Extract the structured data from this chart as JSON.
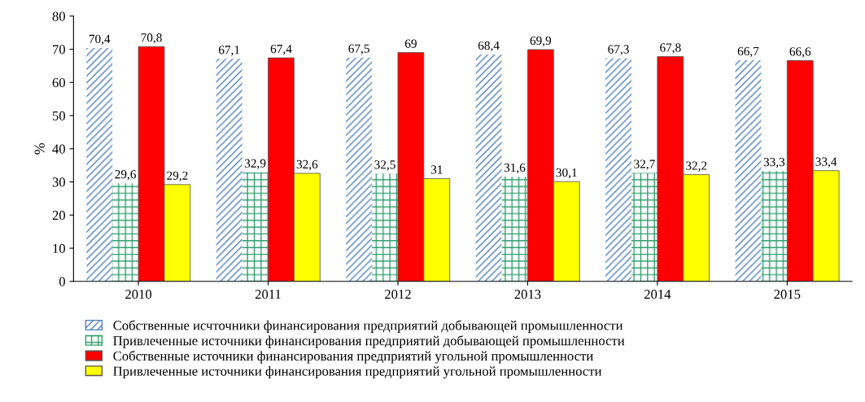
{
  "chart_data": {
    "type": "bar",
    "ylabel": "%",
    "categories": [
      "2010",
      "2011",
      "2012",
      "2013",
      "2014",
      "2015"
    ],
    "ylim": [
      0,
      80
    ],
    "yticks": [
      0,
      10,
      20,
      30,
      40,
      50,
      60,
      70,
      80
    ],
    "grid": false,
    "legend": "bottom",
    "series": [
      {
        "name": "Собственные исчточники финансирования предприятий добывающей промышленности",
        "color": "#4f81bd",
        "values": [
          70.4,
          67.1,
          67.5,
          68.4,
          67.3,
          66.7
        ],
        "value_labels": [
          "70,4",
          "67,1",
          "67,5",
          "68,4",
          "67,3",
          "66,7"
        ]
      },
      {
        "name": "Привлеченные источники финансирования предприятий добывающей промышленности",
        "color": "#2e9e6e",
        "values": [
          29.6,
          32.9,
          32.5,
          31.6,
          32.7,
          33.3
        ],
        "value_labels": [
          "29,6",
          "32,9",
          "32,5",
          "31,6",
          "32,7",
          "33,3"
        ]
      },
      {
        "name": "Собственные источники финансирования предприятий угольной промышленности",
        "color": "#ff0000",
        "values": [
          70.8,
          67.4,
          69,
          69.9,
          67.8,
          66.6
        ],
        "value_labels": [
          "70,8",
          "67,4",
          "69",
          "69,9",
          "67,8",
          "66,6"
        ]
      },
      {
        "name": "Привлеченные источники финансирования предприятий угольной промышленности",
        "color": "#ffff00",
        "values": [
          29.2,
          32.6,
          31,
          30.1,
          32.2,
          33.4
        ],
        "value_labels": [
          "29,2",
          "32,6",
          "31",
          "30,1",
          "32,2",
          "33,4"
        ]
      }
    ]
  }
}
